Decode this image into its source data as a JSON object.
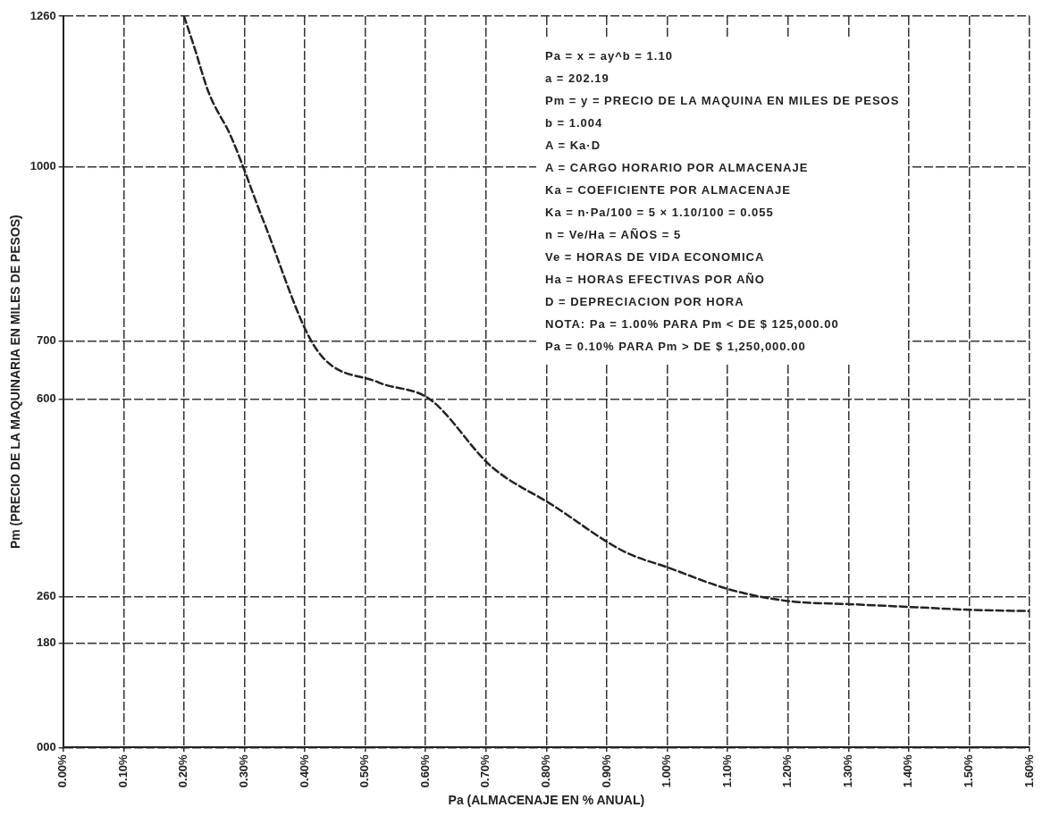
{
  "chart_data": {
    "type": "line",
    "xlabel": "Pa (ALMACENAJE EN % ANUAL)",
    "ylabel": "Pm (PRECIO DE LA MAQUINARIA EN MILES DE PESOS)",
    "x": [
      0.2,
      0.216,
      0.241,
      0.278,
      0.332,
      0.418,
      0.522,
      0.607,
      0.709,
      0.811,
      0.928,
      1.004,
      1.104,
      1.202,
      1.301,
      1.404,
      1.506,
      1.6
    ],
    "series": [
      {
        "color": "#222222",
        "values": [
          1260,
          1210,
          1128,
          1052,
          906,
          688,
          629,
          600,
          484,
          417,
          338,
          309,
          272,
          252,
          247,
          242,
          237,
          235
        ]
      }
    ],
    "xlim": [
      0,
      1.6
    ],
    "xticks": [
      {
        "value": 0,
        "label": "0.00%"
      },
      {
        "value": 0.1,
        "label": "0.10%"
      },
      {
        "value": 0.2,
        "label": "0.20%"
      },
      {
        "value": 0.3,
        "label": "0.30%"
      },
      {
        "value": 0.4,
        "label": "0.40%"
      },
      {
        "value": 0.5,
        "label": "0.50%"
      },
      {
        "value": 0.6,
        "label": "0.60%"
      },
      {
        "value": 0.7,
        "label": "0.70%"
      },
      {
        "value": 0.8,
        "label": "0.80%"
      },
      {
        "value": 0.9,
        "label": "0.90%"
      },
      {
        "value": 1.0,
        "label": "1.00%"
      },
      {
        "value": 1.1,
        "label": "1.10%"
      },
      {
        "value": 1.2,
        "label": "1.20%"
      },
      {
        "value": 1.3,
        "label": "1.30%"
      },
      {
        "value": 1.4,
        "label": "1.40%"
      },
      {
        "value": 1.5,
        "label": "1.50%"
      },
      {
        "value": 1.6,
        "label": "1.60%"
      }
    ],
    "ylim": [
      0,
      1260
    ],
    "yticks": [
      {
        "value": 0,
        "label": "000"
      },
      180,
      260,
      600,
      700,
      1000,
      1260
    ],
    "grid": true,
    "legend": false,
    "marker": "none",
    "line_style": "dashed",
    "annotations": [
      "Pa = x = ay^b = 1.10",
      "a = 202.19",
      "Pm = y = PRECIO DE LA MAQUINA EN MILES DE PESOS",
      "b = 1.004",
      "A = Ka·D",
      "A = CARGO HORARIO POR ALMACENAJE",
      "Ka = COEFICIENTE POR ALMACENAJE",
      "Ka = n·Pa/100 = 5 × 1.10/100 = 0.055",
      "n = Ve/Ha = AÑOS = 5",
      "Ve = HORAS DE VIDA ECONOMICA",
      "Ha = HORAS EFECTIVAS POR AÑO",
      "D = DEPRECIACION POR HORA",
      "NOTA: Pa = 1.00% PARA Pm < DE $ 125,000.00",
      "Pa = 0.10% PARA Pm > DE $ 1,250,000.00"
    ]
  }
}
